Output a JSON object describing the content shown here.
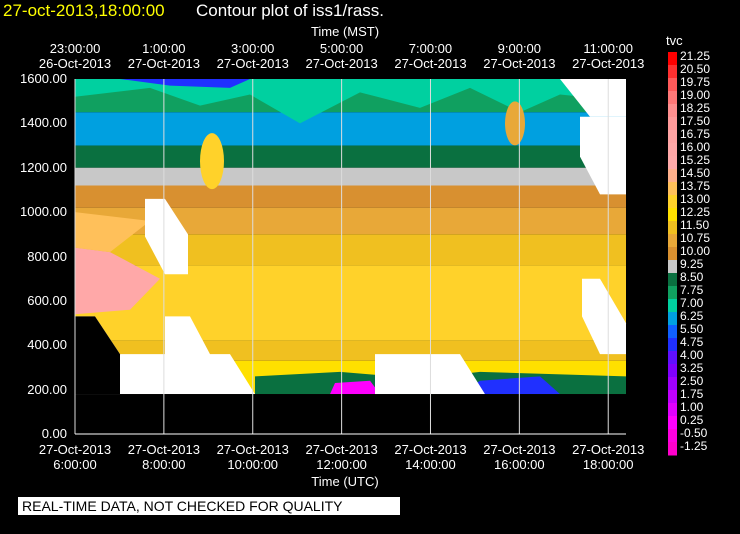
{
  "header": {
    "time": "27-oct-2013,18:00:00",
    "title": "Contour plot of iss1/rass."
  },
  "notice": "REAL-TIME DATA, NOT CHECKED FOR QUALITY",
  "chart_data": {
    "type": "heatmap",
    "top_axis_label": "Time (MST)",
    "bottom_axis_label": "Time (UTC)",
    "top_ticks": [
      {
        "time": "23:00:00",
        "date": "26-Oct-2013"
      },
      {
        "time": "1:00:00",
        "date": "27-Oct-2013"
      },
      {
        "time": "3:00:00",
        "date": "27-Oct-2013"
      },
      {
        "time": "5:00:00",
        "date": "27-Oct-2013"
      },
      {
        "time": "7:00:00",
        "date": "27-Oct-2013"
      },
      {
        "time": "9:00:00",
        "date": "27-Oct-2013"
      },
      {
        "time": "11:00:00",
        "date": "27-Oct-2013"
      }
    ],
    "bottom_ticks": [
      {
        "date": "27-Oct-2013",
        "time": "6:00:00"
      },
      {
        "date": "27-Oct-2013",
        "time": "8:00:00"
      },
      {
        "date": "27-Oct-2013",
        "time": "10:00:00"
      },
      {
        "date": "27-Oct-2013",
        "time": "12:00:00"
      },
      {
        "date": "27-Oct-2013",
        "time": "14:00:00"
      },
      {
        "date": "27-Oct-2013",
        "time": "16:00:00"
      },
      {
        "date": "27-Oct-2013",
        "time": "18:00:00"
      }
    ],
    "x_range_hours_utc": [
      6,
      18.4
    ],
    "y_range": [
      0,
      1600
    ],
    "y_ticks": [
      "1600.00",
      "1400.00",
      "1200.00",
      "1000.00",
      "800.00",
      "600.00",
      "400.00",
      "200.00",
      "0.00"
    ],
    "colorbar": {
      "title": "tvc",
      "labels": [
        "21.25",
        "20.50",
        "19.75",
        "19.00",
        "18.25",
        "17.50",
        "16.75",
        "16.00",
        "15.25",
        "14.50",
        "13.75",
        "13.00",
        "12.25",
        "11.50",
        "10.75",
        "10.00",
        "9.25",
        "8.50",
        "7.75",
        "7.00",
        "6.25",
        "5.50",
        "4.75",
        "4.00",
        "3.25",
        "2.50",
        "1.75",
        "1.00",
        "0.25",
        "-0.50",
        "-1.25"
      ],
      "colors": [
        "#ff0000",
        "#ff3030",
        "#ff5a5a",
        "#ff7878",
        "#ff8f8f",
        "#ff9a9a",
        "#ffa4a4",
        "#ffa8a8",
        "#ffaaaa",
        "#ffb08c",
        "#ffc05a",
        "#ffd22a",
        "#ffe000",
        "#f0c020",
        "#e8a838",
        "#d89030",
        "#c8c8c8",
        "#0a7040",
        "#10a060",
        "#00d0a0",
        "#00a0e0",
        "#1060ff",
        "#2030ff",
        "#6010ff",
        "#8000ff",
        "#a000ff",
        "#c000ff",
        "#e000ff",
        "#ff00ff",
        "#ff00e0",
        "#ff00cc"
      ]
    },
    "grid": true
  }
}
